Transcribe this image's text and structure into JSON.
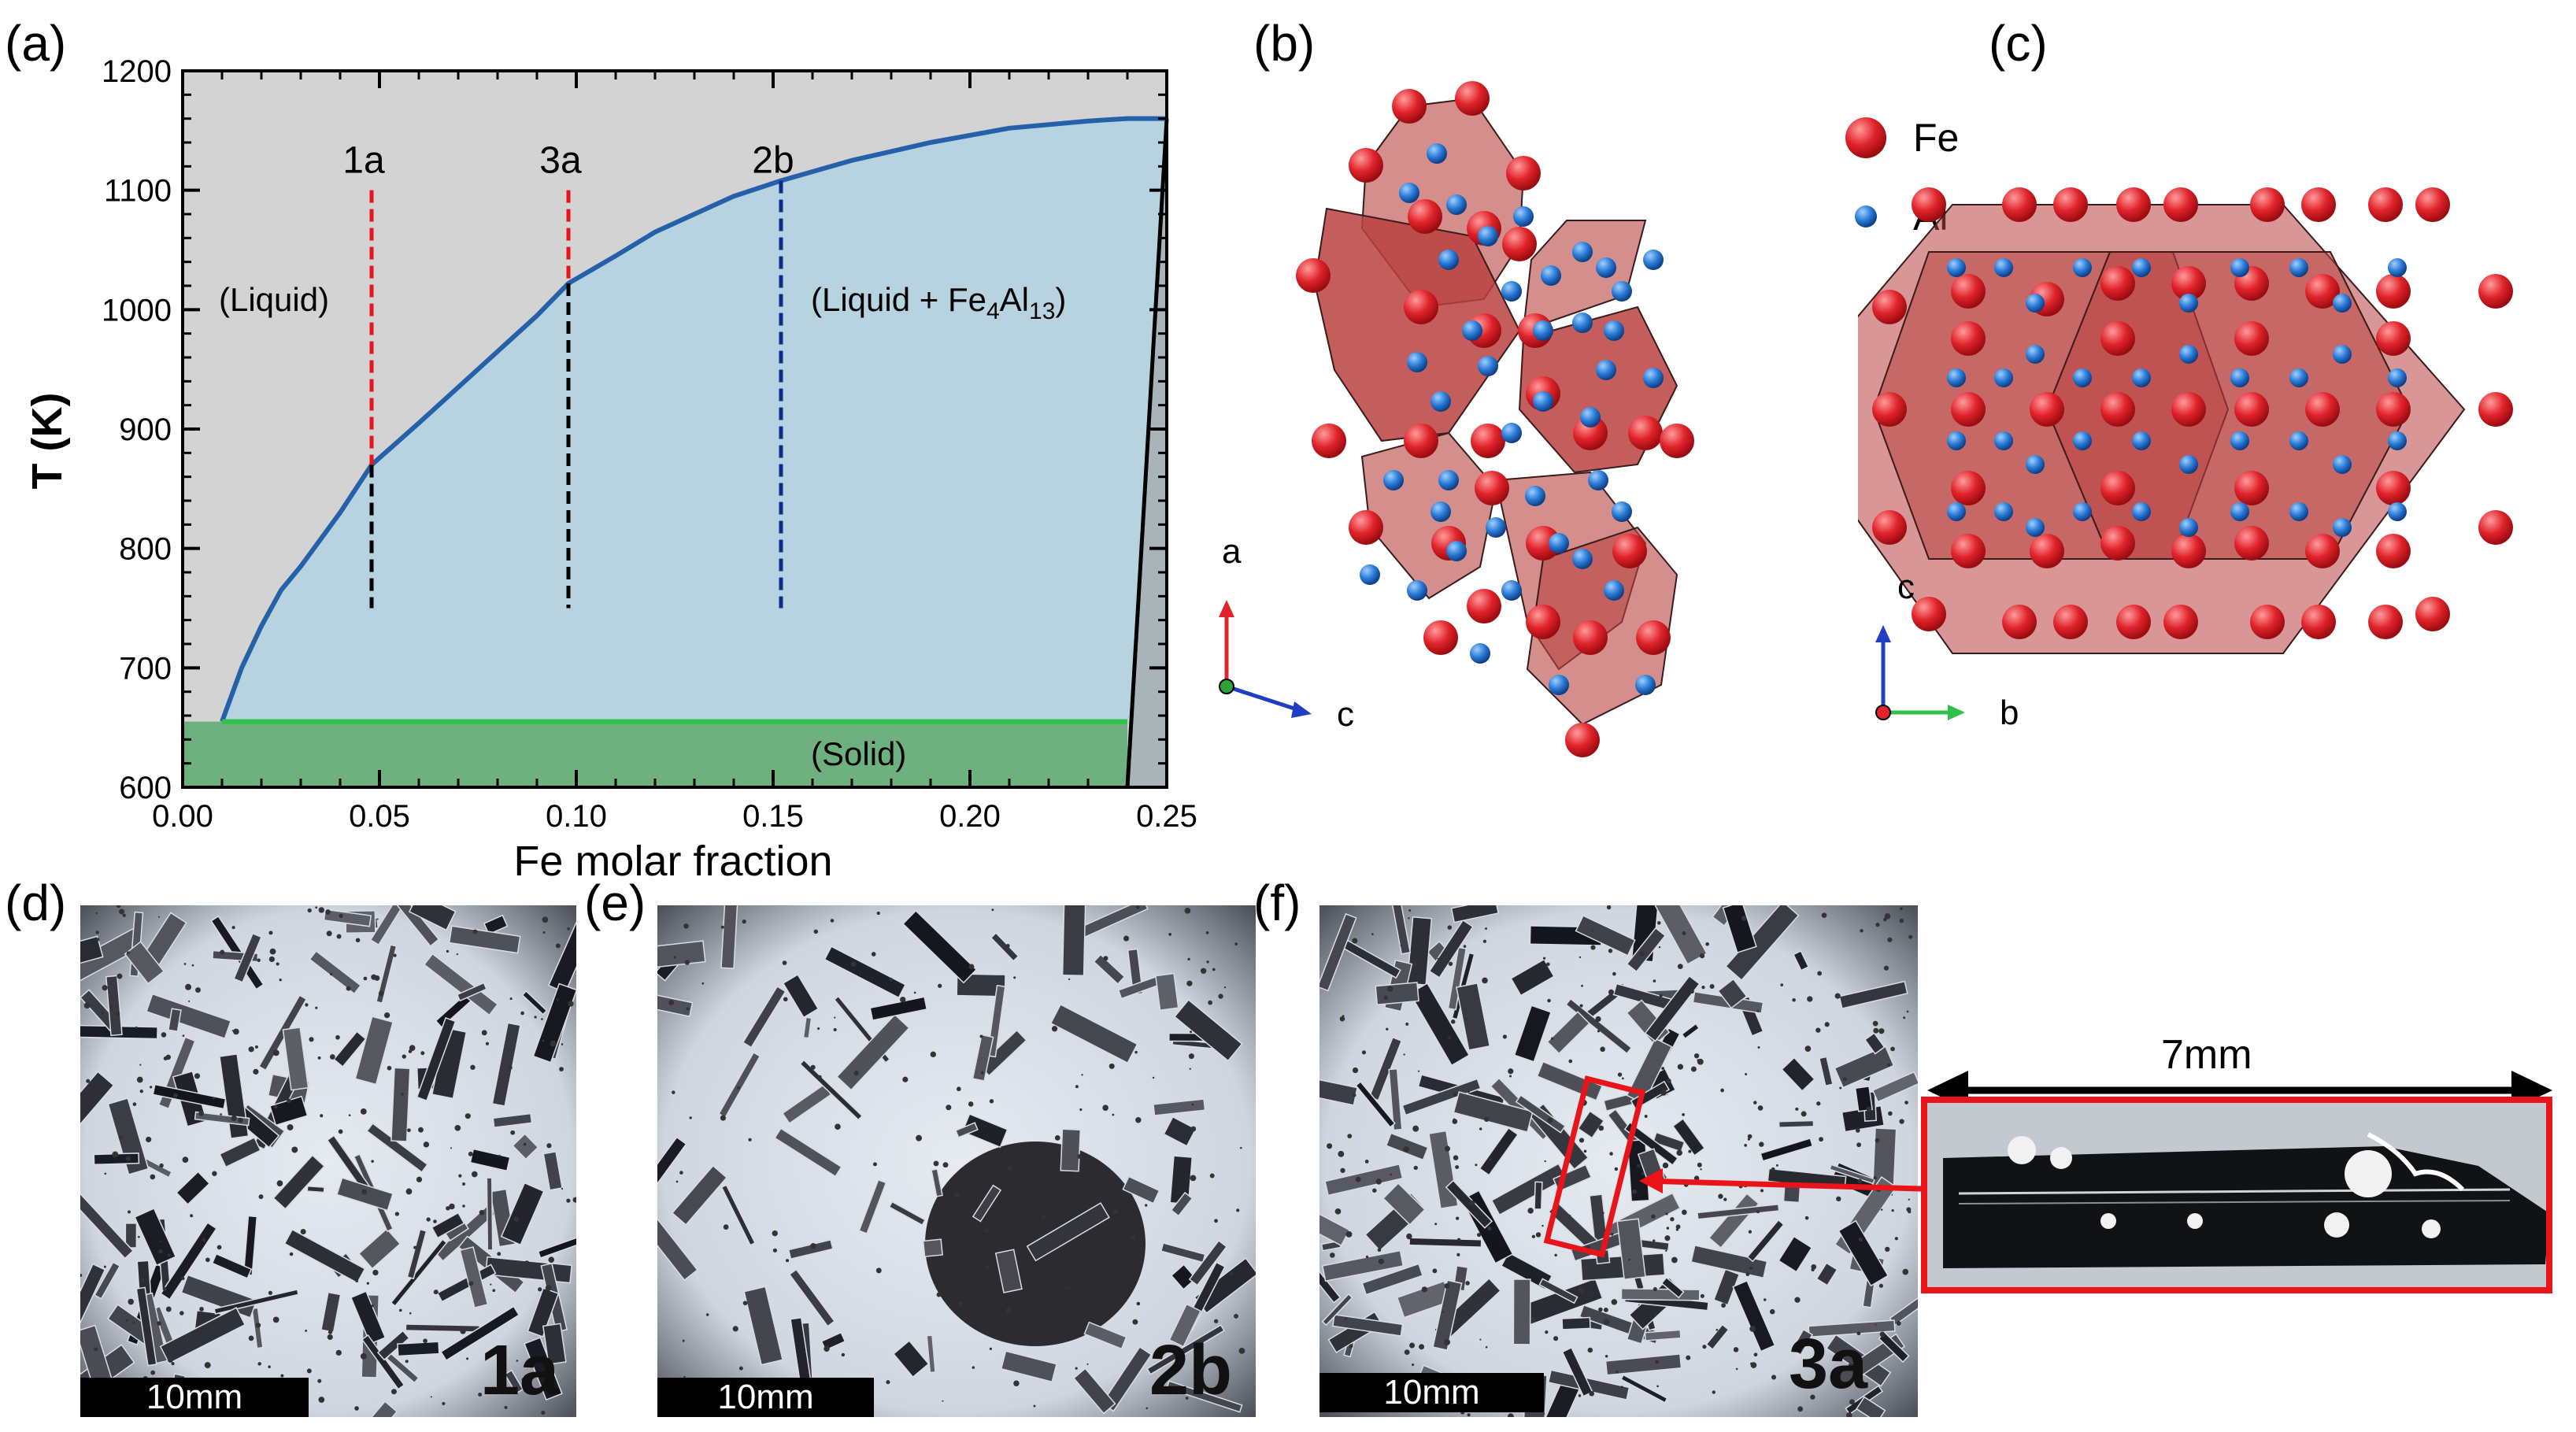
{
  "panels": {
    "a": "(a)",
    "b": "(b)",
    "c": "(c)",
    "d": "(d)",
    "e": "(e)",
    "f": "(f)"
  },
  "phase_diagram": {
    "ylabel": "T (K)",
    "xlabel": "Fe molar fraction",
    "region_liquid": "(Liquid)",
    "region_liquid_fe4al13": "(Liquid + Fe",
    "region_liquid_fe4al13_sub1": "4",
    "region_liquid_fe4al13_mid": "Al",
    "region_liquid_fe4al13_sub2": "13",
    "region_liquid_fe4al13_end": ")",
    "region_solid": "(Solid)",
    "xticks": [
      "0.00",
      "0.05",
      "0.10",
      "0.15",
      "0.20",
      "0.25"
    ],
    "yticks": [
      "600",
      "700",
      "800",
      "900",
      "1000",
      "1100",
      "1200"
    ],
    "markers": [
      {
        "label": "1a",
        "x": 0.048
      },
      {
        "label": "3a",
        "x": 0.098
      },
      {
        "label": "2b",
        "x": 0.152
      }
    ]
  },
  "chart_data": {
    "type": "line",
    "xlabel": "Fe molar fraction",
    "ylabel": "T (K)",
    "xlim": [
      0.0,
      0.25
    ],
    "ylim": [
      600,
      1200
    ],
    "series": [
      {
        "x": [
          0.01,
          0.015,
          0.02,
          0.025,
          0.03,
          0.04,
          0.048,
          0.06,
          0.07,
          0.08,
          0.09,
          0.098,
          0.11,
          0.12,
          0.13,
          0.14,
          0.152,
          0.17,
          0.19,
          0.21,
          0.23,
          0.24,
          0.25
        ],
        "y": [
          655,
          700,
          735,
          765,
          785,
          830,
          870,
          905,
          935,
          965,
          995,
          1022,
          1045,
          1065,
          1080,
          1095,
          1108,
          1125,
          1140,
          1152,
          1158,
          1160,
          1160
        ]
      }
    ],
    "solidus_y": 655,
    "solidus_x_end": 0.24,
    "markers": [
      {
        "label": "1a",
        "x": 0.048,
        "y_from": 750,
        "y_to": 1100
      },
      {
        "label": "3a",
        "x": 0.098,
        "y_from": 750,
        "y_to": 1100
      },
      {
        "label": "2b",
        "x": 0.152,
        "y_from": 750,
        "y_to": 1100
      }
    ],
    "colors": {
      "liquid": "#d3d3d3",
      "two_phase": "#b6d3df",
      "solid": "#6fb07f",
      "liquidus": "#2461a8",
      "solidus": "#2fc14a"
    }
  },
  "structure": {
    "legend_fe": "Fe",
    "legend_al": "Al",
    "axes_b": {
      "up": "a",
      "right": "c"
    },
    "axes_c": {
      "up": "c",
      "right": "b"
    },
    "colors": {
      "fe": "#e0232a",
      "al": "#2b7bd6",
      "polyhedron": "#b8423f"
    }
  },
  "photos": {
    "d": {
      "scale": "10mm",
      "tag": "1a"
    },
    "e": {
      "scale": "10mm",
      "tag": "2b"
    },
    "f": {
      "scale": "10mm",
      "tag": "3a"
    },
    "inset_length": "7mm"
  }
}
